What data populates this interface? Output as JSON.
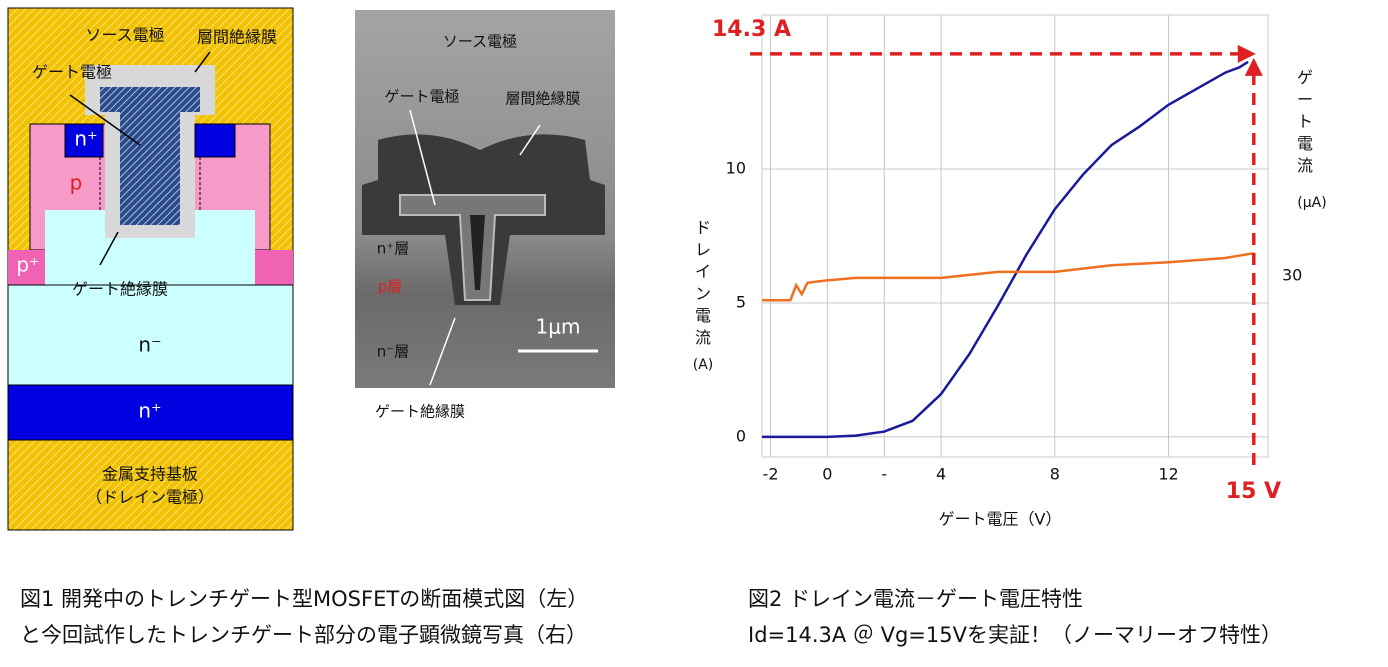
{
  "diagram": {
    "labels": [
      "ソース電極",
      "層間絶縁膜",
      "ゲート電極",
      "n⁺",
      "p",
      "p⁺",
      "ゲート絶縁膜",
      "n⁻",
      "n⁺",
      "金属支持基板",
      "（ドレイン電極）"
    ]
  },
  "photo": {
    "labels": [
      "ソース電極",
      "ゲート電極",
      "層間絶縁膜",
      "n⁺層",
      "p層",
      "n⁻層",
      "1μm",
      "ゲート絶縁膜"
    ]
  },
  "captions": {
    "fig1": [
      "図1 開発中のトレンチゲート型MOSFETの断面模式図（左）",
      "と今回試作したトレンチゲート部分の電子顕微鏡写真（右）"
    ],
    "fig2": [
      "図2 ドレイン電流－ゲート電圧特性",
      "Id=14.3A ＠ Vg=15Vを実証！（ノーマリーオフ特性）"
    ]
  },
  "chart_data": {
    "type": "line",
    "x_label": "ゲート電圧（V）",
    "y_label": [
      "ドレイン電流",
      "(A)"
    ],
    "y2_label": [
      "ゲート電流",
      "(μA)"
    ],
    "xlim": [
      -2.3,
      15.5
    ],
    "xticks": [
      -2,
      0,
      {
        "value": 2,
        "label": "-"
      },
      4,
      8,
      12
    ],
    "ylim": [
      -0.75,
      15.75
    ],
    "yticks": [
      0,
      5,
      10
    ],
    "y2lim": [
      0,
      73.3
    ],
    "y2ticks": [
      30
    ],
    "grid": true,
    "series": [
      {
        "name": "ドレイン電流",
        "color": "#1a1a9a",
        "x": [
          -2.3,
          0,
          1,
          2,
          3,
          4,
          5,
          6,
          7,
          8,
          9,
          10,
          11,
          12,
          13,
          14,
          14.5,
          14.8
        ],
        "values": [
          0,
          0,
          0.05,
          0.2,
          0.6,
          1.6,
          3.1,
          4.9,
          6.8,
          8.5,
          9.8,
          10.9,
          11.6,
          12.4,
          13.0,
          13.6,
          13.8,
          14.0
        ]
      },
      {
        "name": "ゲート電流",
        "color": "#f07020",
        "axis": "y2",
        "x": [
          -2.3,
          -1.3,
          -1.1,
          -0.9,
          -0.7,
          0,
          1,
          4,
          5,
          6,
          8,
          10,
          12,
          14,
          15
        ],
        "values": [
          26.0,
          26.0,
          28.5,
          27.0,
          28.9,
          29.3,
          29.7,
          29.7,
          30.2,
          30.7,
          30.7,
          31.8,
          32.3,
          33.0,
          33.8
        ]
      }
    ],
    "markers": {
      "x": 15,
      "x_label": "15 V",
      "y": 14.3,
      "y_label": "14.3 A",
      "color": "#e02020"
    }
  }
}
